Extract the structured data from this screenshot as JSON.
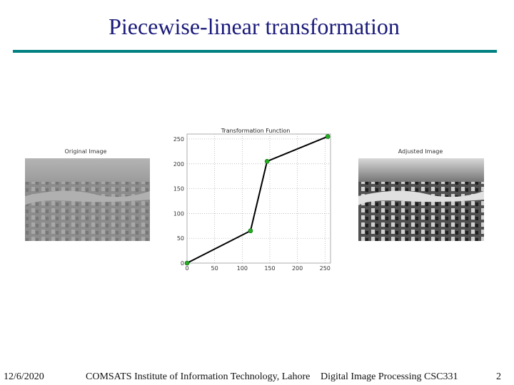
{
  "slide": {
    "title": "Piecewise-linear transformation",
    "footer": {
      "date": "12/6/2020",
      "institute": "COMSATS Institute of Information Technology, Lahore",
      "course": "Digital Image Processing CSC331",
      "page": "2"
    },
    "left_image_label": "Original Image",
    "right_image_label": "Adjusted Image"
  },
  "chart_data": {
    "type": "line",
    "title": "Transformation Function",
    "x": [
      0,
      115,
      145,
      255
    ],
    "values": [
      0,
      65,
      205,
      255
    ],
    "color": "#000000",
    "marker_color": "#22b022",
    "xlim": [
      0,
      260
    ],
    "ylim": [
      0,
      260
    ],
    "xticks": [
      0,
      50,
      100,
      150,
      200,
      250
    ],
    "yticks": [
      0,
      50,
      100,
      150,
      200,
      250
    ],
    "grid": true
  }
}
